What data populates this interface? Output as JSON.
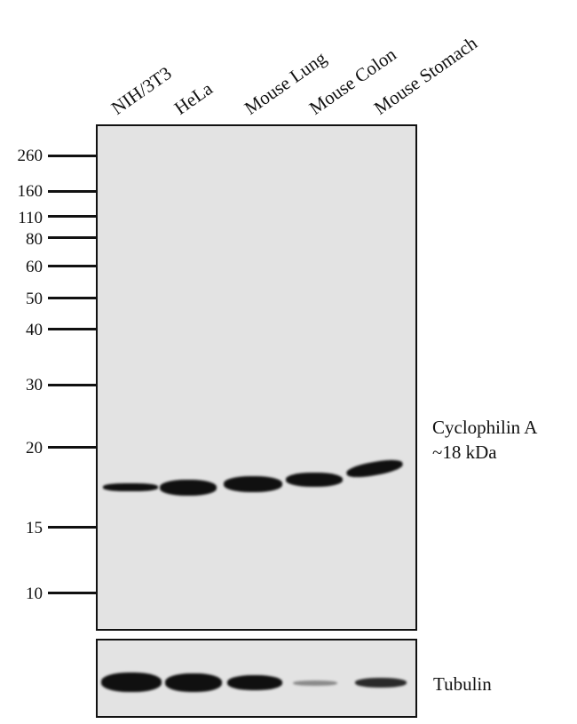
{
  "lanes": [
    "NIH/3T3",
    "HeLa",
    "Mouse Lung",
    "Mouse Colon",
    "Mouse  Stomach"
  ],
  "markers": [
    "260",
    "160",
    "110",
    "80",
    "60",
    "50",
    "40",
    "30",
    "20",
    "15",
    "10"
  ],
  "target": {
    "name": "Cyclophilin A",
    "size": "~18 kDa"
  },
  "loading_control": {
    "name": "Tubulin",
    "relative_intensity": [
      1.0,
      0.95,
      0.8,
      0.25,
      0.6
    ]
  },
  "colors": {
    "membrane": "#e3e3e3",
    "band": "#101010"
  }
}
